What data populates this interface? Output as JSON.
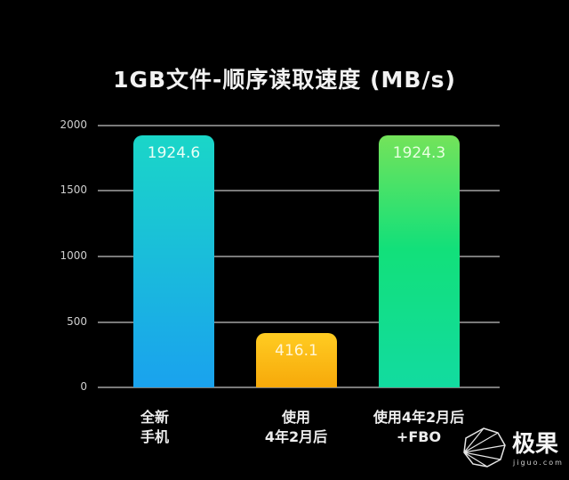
{
  "title": "1GB文件-顺序读取速度 (MB/s)",
  "chart_data": {
    "type": "bar",
    "title": "1GB文件-顺序读取速度 (MB/s)",
    "xlabel": "",
    "ylabel": "MB/s",
    "ylim": [
      0,
      2000
    ],
    "yticks": [
      0,
      500,
      1000,
      1500,
      2000
    ],
    "grid": true,
    "legend": null,
    "categories": [
      "全新手机",
      "使用4年2月后",
      "使用4年2月后+FBO"
    ],
    "values": [
      1924.6,
      416.1,
      1924.3
    ],
    "data_labels": [
      "1924.6",
      "416.1",
      "1924.3"
    ],
    "bar_colors": [
      {
        "top": "#1ad6c8",
        "bottom": "#1aa2ee"
      },
      {
        "top": "#ffcc22",
        "bottom": "#f7a90a"
      },
      {
        "top": "#74e35a",
        "bottom": "#12dba0"
      }
    ]
  },
  "yticks": [
    "0",
    "500",
    "1000",
    "1500",
    "2000"
  ],
  "bars": [
    {
      "label": "1924.6",
      "line1": "全新",
      "line2": "手机"
    },
    {
      "label": "416.1",
      "line1": "使用",
      "line2": "4年2月后"
    },
    {
      "label": "1924.3",
      "line1": "使用4年2月后",
      "line2": "+FBO"
    }
  ],
  "watermark": {
    "brand": "极果",
    "url": "jiguo.com"
  }
}
